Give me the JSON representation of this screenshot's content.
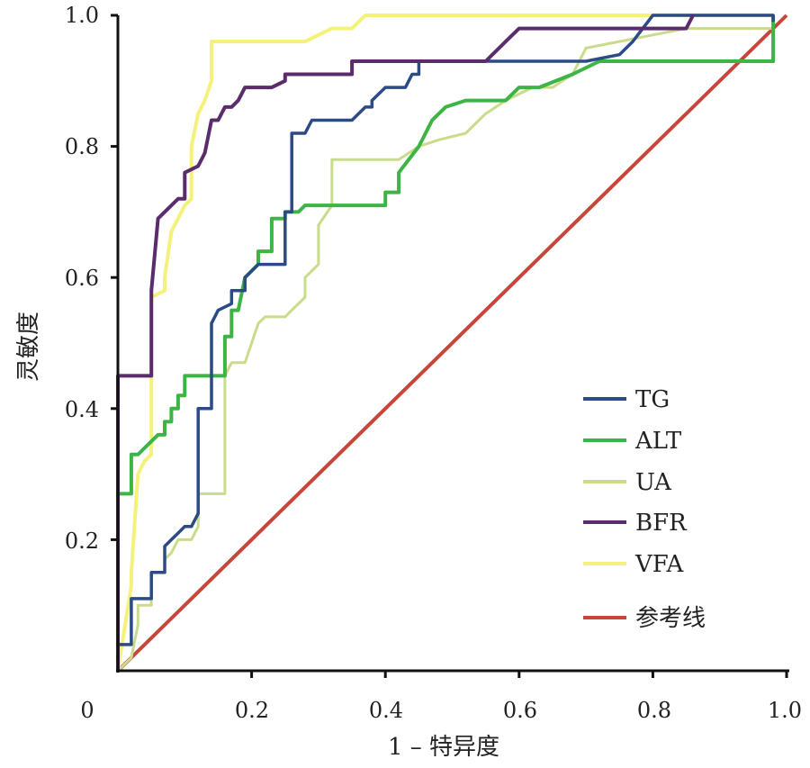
{
  "chart_data": {
    "type": "line",
    "title": "",
    "xlabel": "1 – 特异度",
    "ylabel": "灵敏度",
    "xlim": [
      0,
      1
    ],
    "ylim": [
      0,
      1
    ],
    "x_ticks": [
      "0",
      "0.2",
      "0.4",
      "0.6",
      "0.8",
      "1.0"
    ],
    "y_ticks": [
      "0.2",
      "0.4",
      "0.6",
      "0.8",
      "1.0"
    ],
    "grid": false,
    "legend_position": "bottom-right",
    "series": [
      {
        "name": "TG",
        "color": "#2b4a86",
        "x": [
          0,
          0,
          0.02,
          0.02,
          0.05,
          0.05,
          0.07,
          0.07,
          0.08,
          0.09,
          0.1,
          0.11,
          0.12,
          0.12,
          0.14,
          0.14,
          0.15,
          0.17,
          0.17,
          0.19,
          0.19,
          0.21,
          0.23,
          0.25,
          0.25,
          0.26,
          0.26,
          0.28,
          0.29,
          0.3,
          0.32,
          0.35,
          0.37,
          0.38,
          0.38,
          0.4,
          0.42,
          0.43,
          0.44,
          0.45,
          0.45,
          0.47,
          0.55,
          0.58,
          0.7,
          0.75,
          0.77,
          0.8,
          0.82,
          0.85,
          0.98,
          0.98
        ],
        "y": [
          0,
          0.04,
          0.04,
          0.11,
          0.11,
          0.15,
          0.15,
          0.19,
          0.2,
          0.21,
          0.22,
          0.22,
          0.24,
          0.4,
          0.4,
          0.53,
          0.55,
          0.56,
          0.58,
          0.58,
          0.6,
          0.62,
          0.62,
          0.62,
          0.7,
          0.7,
          0.82,
          0.82,
          0.84,
          0.84,
          0.84,
          0.84,
          0.86,
          0.86,
          0.87,
          0.89,
          0.89,
          0.89,
          0.91,
          0.91,
          0.93,
          0.93,
          0.93,
          0.93,
          0.93,
          0.94,
          0.96,
          1,
          1,
          1,
          1,
          0.99
        ]
      },
      {
        "name": "ALT",
        "color": "#3cb544",
        "x": [
          0,
          0,
          0.02,
          0.02,
          0.03,
          0.04,
          0.05,
          0.06,
          0.07,
          0.07,
          0.08,
          0.08,
          0.09,
          0.09,
          0.1,
          0.1,
          0.12,
          0.16,
          0.16,
          0.17,
          0.17,
          0.18,
          0.19,
          0.21,
          0.21,
          0.23,
          0.23,
          0.25,
          0.25,
          0.27,
          0.28,
          0.3,
          0.32,
          0.35,
          0.38,
          0.4,
          0.4,
          0.42,
          0.42,
          0.45,
          0.47,
          0.49,
          0.52,
          0.55,
          0.58,
          0.6,
          0.63,
          0.68,
          0.72,
          0.76,
          0.8,
          0.85,
          0.98,
          0.98
        ],
        "y": [
          0,
          0.27,
          0.27,
          0.33,
          0.33,
          0.34,
          0.35,
          0.36,
          0.36,
          0.38,
          0.38,
          0.4,
          0.4,
          0.42,
          0.42,
          0.45,
          0.45,
          0.45,
          0.51,
          0.51,
          0.55,
          0.55,
          0.6,
          0.62,
          0.64,
          0.64,
          0.69,
          0.69,
          0.7,
          0.7,
          0.71,
          0.71,
          0.71,
          0.71,
          0.71,
          0.71,
          0.73,
          0.73,
          0.76,
          0.8,
          0.84,
          0.86,
          0.87,
          0.87,
          0.87,
          0.89,
          0.89,
          0.91,
          0.93,
          0.93,
          0.93,
          0.93,
          0.93,
          1
        ]
      },
      {
        "name": "UA",
        "color": "#c9dc8c",
        "x": [
          0,
          0.02,
          0.03,
          0.03,
          0.05,
          0.05,
          0.07,
          0.07,
          0.08,
          0.09,
          0.11,
          0.12,
          0.12,
          0.14,
          0.16,
          0.16,
          0.17,
          0.19,
          0.2,
          0.21,
          0.22,
          0.23,
          0.25,
          0.26,
          0.28,
          0.28,
          0.3,
          0.3,
          0.32,
          0.32,
          0.35,
          0.37,
          0.4,
          0.42,
          0.45,
          0.48,
          0.52,
          0.55,
          0.58,
          0.62,
          0.65,
          0.68,
          0.7,
          0.75,
          0.8,
          0.85,
          0.9,
          0.98
        ],
        "y": [
          0,
          0.02,
          0.07,
          0.1,
          0.1,
          0.15,
          0.15,
          0.17,
          0.18,
          0.2,
          0.2,
          0.22,
          0.27,
          0.27,
          0.27,
          0.45,
          0.47,
          0.47,
          0.5,
          0.53,
          0.54,
          0.54,
          0.54,
          0.55,
          0.57,
          0.6,
          0.62,
          0.68,
          0.71,
          0.78,
          0.78,
          0.78,
          0.78,
          0.78,
          0.8,
          0.81,
          0.82,
          0.85,
          0.87,
          0.89,
          0.89,
          0.91,
          0.95,
          0.96,
          0.97,
          0.98,
          0.98,
          0.98
        ]
      },
      {
        "name": "BFR",
        "color": "#5a2c6c",
        "x": [
          0,
          0,
          0.05,
          0.05,
          0.06,
          0.07,
          0.09,
          0.1,
          0.1,
          0.12,
          0.13,
          0.14,
          0.15,
          0.16,
          0.17,
          0.18,
          0.19,
          0.21,
          0.22,
          0.23,
          0.25,
          0.25,
          0.27,
          0.3,
          0.33,
          0.35,
          0.35,
          0.4,
          0.45,
          0.5,
          0.55,
          0.58,
          0.6,
          0.65,
          0.72,
          0.79,
          0.82,
          0.85,
          0.86
        ],
        "y": [
          0,
          0.45,
          0.45,
          0.58,
          0.69,
          0.7,
          0.72,
          0.72,
          0.76,
          0.77,
          0.79,
          0.84,
          0.84,
          0.86,
          0.86,
          0.87,
          0.89,
          0.89,
          0.89,
          0.89,
          0.9,
          0.91,
          0.91,
          0.91,
          0.91,
          0.91,
          0.93,
          0.93,
          0.93,
          0.93,
          0.93,
          0.96,
          0.98,
          0.98,
          0.98,
          0.98,
          0.98,
          0.98,
          1
        ]
      },
      {
        "name": "VFA",
        "color": "#f4f27a",
        "x": [
          0,
          0.02,
          0.02,
          0.03,
          0.04,
          0.05,
          0.05,
          0.07,
          0.07,
          0.08,
          0.09,
          0.1,
          0.11,
          0.11,
          0.12,
          0.13,
          0.14,
          0.14,
          0.16,
          0.2,
          0.25,
          0.26,
          0.28,
          0.3,
          0.32,
          0.35,
          0.36,
          0.37,
          0.38,
          0.45,
          0.55,
          0.65,
          0.75,
          0.85,
          0.98
        ],
        "y": [
          0,
          0.13,
          0.15,
          0.3,
          0.32,
          0.33,
          0.57,
          0.58,
          0.6,
          0.67,
          0.69,
          0.71,
          0.72,
          0.8,
          0.85,
          0.87,
          0.9,
          0.96,
          0.96,
          0.96,
          0.96,
          0.96,
          0.96,
          0.97,
          0.98,
          0.98,
          0.99,
          1,
          1,
          1,
          1,
          1,
          1,
          1,
          1
        ]
      },
      {
        "name": "参考线",
        "color": "#c8453a",
        "x": [
          0,
          1
        ],
        "y": [
          0,
          1
        ]
      }
    ]
  }
}
